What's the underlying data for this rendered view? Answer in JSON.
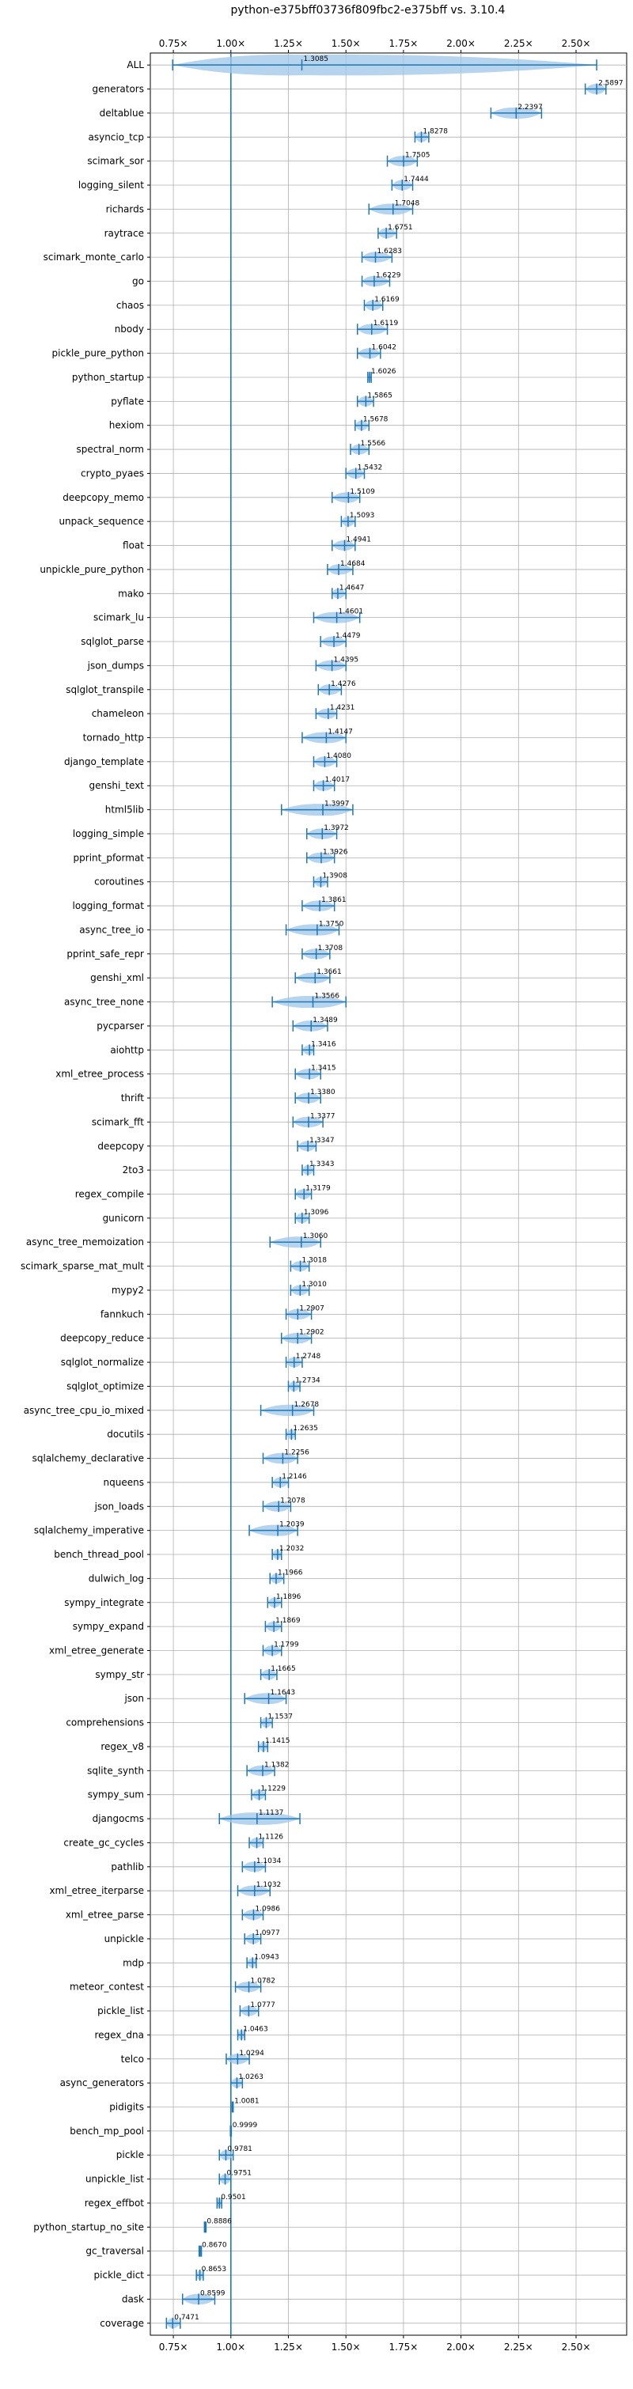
{
  "chart_data": {
    "type": "violin",
    "title": "python-e375bff03736f809fbc2-e375bff vs. 3.10.4",
    "xlabel": "",
    "ylabel": "",
    "xlim": [
      0.65,
      2.72
    ],
    "xticks": [
      0.75,
      1.0,
      1.25,
      1.5,
      1.75,
      2.0,
      2.25,
      2.5
    ],
    "xtick_labels": [
      "0.75×",
      "1.00×",
      "1.25×",
      "1.50×",
      "1.75×",
      "2.00×",
      "2.25×",
      "2.50×"
    ],
    "reference_line": 1.0,
    "grid": true,
    "colors": {
      "violin": "#9ec6e8",
      "whisker": "#1f77b4",
      "reference": "#1f77b4",
      "grid": "#b0b0b0"
    },
    "benchmarks": [
      {
        "name": "ALL",
        "median": 1.3085,
        "min": 0.7471,
        "max": 2.5897,
        "label": "1.3085"
      },
      {
        "name": "generators",
        "median": 2.5897,
        "min": 2.54,
        "max": 2.63,
        "label": "2.5897"
      },
      {
        "name": "deltablue",
        "median": 2.2397,
        "min": 2.13,
        "max": 2.35,
        "label": "2.2397"
      },
      {
        "name": "asyncio_tcp",
        "median": 1.8278,
        "min": 1.8,
        "max": 1.86,
        "label": "1.8278"
      },
      {
        "name": "scimark_sor",
        "median": 1.7505,
        "min": 1.68,
        "max": 1.81,
        "label": "1.7505"
      },
      {
        "name": "logging_silent",
        "median": 1.7444,
        "min": 1.7,
        "max": 1.79,
        "label": "1.7444"
      },
      {
        "name": "richards",
        "median": 1.7048,
        "min": 1.6,
        "max": 1.79,
        "label": "1.7048"
      },
      {
        "name": "raytrace",
        "median": 1.6751,
        "min": 1.64,
        "max": 1.72,
        "label": "1.6751"
      },
      {
        "name": "scimark_monte_carlo",
        "median": 1.6283,
        "min": 1.57,
        "max": 1.7,
        "label": "1.6283"
      },
      {
        "name": "go",
        "median": 1.6229,
        "min": 1.57,
        "max": 1.69,
        "label": "1.6229"
      },
      {
        "name": "chaos",
        "median": 1.6169,
        "min": 1.58,
        "max": 1.66,
        "label": "1.6169"
      },
      {
        "name": "nbody",
        "median": 1.6119,
        "min": 1.55,
        "max": 1.68,
        "label": "1.6119"
      },
      {
        "name": "pickle_pure_python",
        "median": 1.6042,
        "min": 1.55,
        "max": 1.65,
        "label": "1.6042"
      },
      {
        "name": "python_startup",
        "median": 1.6026,
        "min": 1.595,
        "max": 1.61,
        "label": "1.6026"
      },
      {
        "name": "pyflate",
        "median": 1.5865,
        "min": 1.55,
        "max": 1.62,
        "label": "1.5865"
      },
      {
        "name": "hexiom",
        "median": 1.5678,
        "min": 1.54,
        "max": 1.6,
        "label": "1.5678"
      },
      {
        "name": "spectral_norm",
        "median": 1.5566,
        "min": 1.52,
        "max": 1.6,
        "label": "1.5566"
      },
      {
        "name": "crypto_pyaes",
        "median": 1.5432,
        "min": 1.5,
        "max": 1.58,
        "label": "1.5432"
      },
      {
        "name": "deepcopy_memo",
        "median": 1.5109,
        "min": 1.44,
        "max": 1.56,
        "label": "1.5109"
      },
      {
        "name": "unpack_sequence",
        "median": 1.5093,
        "min": 1.48,
        "max": 1.54,
        "label": "1.5093"
      },
      {
        "name": "float",
        "median": 1.4941,
        "min": 1.44,
        "max": 1.54,
        "label": "1.4941"
      },
      {
        "name": "unpickle_pure_python",
        "median": 1.4684,
        "min": 1.42,
        "max": 1.53,
        "label": "1.4684"
      },
      {
        "name": "mako",
        "median": 1.4647,
        "min": 1.44,
        "max": 1.5,
        "label": "1.4647"
      },
      {
        "name": "scimark_lu",
        "median": 1.4601,
        "min": 1.36,
        "max": 1.56,
        "label": "1.4601"
      },
      {
        "name": "sqlglot_parse",
        "median": 1.4479,
        "min": 1.39,
        "max": 1.5,
        "label": "1.4479"
      },
      {
        "name": "json_dumps",
        "median": 1.4395,
        "min": 1.37,
        "max": 1.5,
        "label": "1.4395"
      },
      {
        "name": "sqlglot_transpile",
        "median": 1.4276,
        "min": 1.38,
        "max": 1.48,
        "label": "1.4276"
      },
      {
        "name": "chameleon",
        "median": 1.4231,
        "min": 1.37,
        "max": 1.46,
        "label": "1.4231"
      },
      {
        "name": "tornado_http",
        "median": 1.4147,
        "min": 1.31,
        "max": 1.5,
        "label": "1.4147"
      },
      {
        "name": "django_template",
        "median": 1.408,
        "min": 1.36,
        "max": 1.46,
        "label": "1.4080"
      },
      {
        "name": "genshi_text",
        "median": 1.4017,
        "min": 1.36,
        "max": 1.45,
        "label": "1.4017"
      },
      {
        "name": "html5lib",
        "median": 1.3997,
        "min": 1.22,
        "max": 1.53,
        "label": "1.3997"
      },
      {
        "name": "logging_simple",
        "median": 1.3972,
        "min": 1.33,
        "max": 1.46,
        "label": "1.3972"
      },
      {
        "name": "pprint_pformat",
        "median": 1.3926,
        "min": 1.33,
        "max": 1.45,
        "label": "1.3926"
      },
      {
        "name": "coroutines",
        "median": 1.3908,
        "min": 1.36,
        "max": 1.42,
        "label": "1.3908"
      },
      {
        "name": "logging_format",
        "median": 1.3861,
        "min": 1.31,
        "max": 1.45,
        "label": "1.3861"
      },
      {
        "name": "async_tree_io",
        "median": 1.375,
        "min": 1.24,
        "max": 1.47,
        "label": "1.3750"
      },
      {
        "name": "pprint_safe_repr",
        "median": 1.3708,
        "min": 1.31,
        "max": 1.43,
        "label": "1.3708"
      },
      {
        "name": "genshi_xml",
        "median": 1.3661,
        "min": 1.28,
        "max": 1.43,
        "label": "1.3661"
      },
      {
        "name": "async_tree_none",
        "median": 1.3566,
        "min": 1.18,
        "max": 1.5,
        "label": "1.3566"
      },
      {
        "name": "pycparser",
        "median": 1.3489,
        "min": 1.27,
        "max": 1.42,
        "label": "1.3489"
      },
      {
        "name": "aiohttp",
        "median": 1.3416,
        "min": 1.31,
        "max": 1.36,
        "label": "1.3416"
      },
      {
        "name": "xml_etree_process",
        "median": 1.3415,
        "min": 1.28,
        "max": 1.39,
        "label": "1.3415"
      },
      {
        "name": "thrift",
        "median": 1.338,
        "min": 1.28,
        "max": 1.39,
        "label": "1.3380"
      },
      {
        "name": "scimark_fft",
        "median": 1.3377,
        "min": 1.27,
        "max": 1.4,
        "label": "1.3377"
      },
      {
        "name": "deepcopy",
        "median": 1.3347,
        "min": 1.29,
        "max": 1.37,
        "label": "1.3347"
      },
      {
        "name": "2to3",
        "median": 1.3343,
        "min": 1.31,
        "max": 1.36,
        "label": "1.3343"
      },
      {
        "name": "regex_compile",
        "median": 1.3179,
        "min": 1.28,
        "max": 1.35,
        "label": "1.3179"
      },
      {
        "name": "gunicorn",
        "median": 1.3096,
        "min": 1.28,
        "max": 1.34,
        "label": "1.3096"
      },
      {
        "name": "async_tree_memoization",
        "median": 1.306,
        "min": 1.17,
        "max": 1.39,
        "label": "1.3060"
      },
      {
        "name": "scimark_sparse_mat_mult",
        "median": 1.3018,
        "min": 1.26,
        "max": 1.34,
        "label": "1.3018"
      },
      {
        "name": "mypy2",
        "median": 1.301,
        "min": 1.26,
        "max": 1.34,
        "label": "1.3010"
      },
      {
        "name": "fannkuch",
        "median": 1.2907,
        "min": 1.24,
        "max": 1.35,
        "label": "1.2907"
      },
      {
        "name": "deepcopy_reduce",
        "median": 1.2902,
        "min": 1.22,
        "max": 1.35,
        "label": "1.2902"
      },
      {
        "name": "sqlglot_normalize",
        "median": 1.2748,
        "min": 1.24,
        "max": 1.31,
        "label": "1.2748"
      },
      {
        "name": "sqlglot_optimize",
        "median": 1.2734,
        "min": 1.25,
        "max": 1.3,
        "label": "1.2734"
      },
      {
        "name": "async_tree_cpu_io_mixed",
        "median": 1.2678,
        "min": 1.13,
        "max": 1.36,
        "label": "1.2678"
      },
      {
        "name": "docutils",
        "median": 1.2635,
        "min": 1.24,
        "max": 1.28,
        "label": "1.2635"
      },
      {
        "name": "sqlalchemy_declarative",
        "median": 1.2256,
        "min": 1.14,
        "max": 1.29,
        "label": "1.2256"
      },
      {
        "name": "nqueens",
        "median": 1.2146,
        "min": 1.18,
        "max": 1.25,
        "label": "1.2146"
      },
      {
        "name": "json_loads",
        "median": 1.2078,
        "min": 1.14,
        "max": 1.26,
        "label": "1.2078"
      },
      {
        "name": "sqlalchemy_imperative",
        "median": 1.2039,
        "min": 1.08,
        "max": 1.29,
        "label": "1.2039"
      },
      {
        "name": "bench_thread_pool",
        "median": 1.2032,
        "min": 1.18,
        "max": 1.22,
        "label": "1.2032"
      },
      {
        "name": "dulwich_log",
        "median": 1.1966,
        "min": 1.17,
        "max": 1.23,
        "label": "1.1966"
      },
      {
        "name": "sympy_integrate",
        "median": 1.1896,
        "min": 1.16,
        "max": 1.22,
        "label": "1.1896"
      },
      {
        "name": "sympy_expand",
        "median": 1.1869,
        "min": 1.15,
        "max": 1.22,
        "label": "1.1869"
      },
      {
        "name": "xml_etree_generate",
        "median": 1.1799,
        "min": 1.14,
        "max": 1.22,
        "label": "1.1799"
      },
      {
        "name": "sympy_str",
        "median": 1.1665,
        "min": 1.13,
        "max": 1.2,
        "label": "1.1665"
      },
      {
        "name": "json",
        "median": 1.1643,
        "min": 1.06,
        "max": 1.24,
        "label": "1.1643"
      },
      {
        "name": "comprehensions",
        "median": 1.1537,
        "min": 1.13,
        "max": 1.18,
        "label": "1.1537"
      },
      {
        "name": "regex_v8",
        "median": 1.1415,
        "min": 1.12,
        "max": 1.16,
        "label": "1.1415"
      },
      {
        "name": "sqlite_synth",
        "median": 1.1382,
        "min": 1.07,
        "max": 1.19,
        "label": "1.1382"
      },
      {
        "name": "sympy_sum",
        "median": 1.1229,
        "min": 1.09,
        "max": 1.15,
        "label": "1.1229"
      },
      {
        "name": "djangocms",
        "median": 1.1137,
        "min": 0.95,
        "max": 1.3,
        "label": "1.1137"
      },
      {
        "name": "create_gc_cycles",
        "median": 1.1126,
        "min": 1.08,
        "max": 1.14,
        "label": "1.1126"
      },
      {
        "name": "pathlib",
        "median": 1.1034,
        "min": 1.05,
        "max": 1.15,
        "label": "1.1034"
      },
      {
        "name": "xml_etree_iterparse",
        "median": 1.1032,
        "min": 1.03,
        "max": 1.17,
        "label": "1.1032"
      },
      {
        "name": "xml_etree_parse",
        "median": 1.0986,
        "min": 1.05,
        "max": 1.14,
        "label": "1.0986"
      },
      {
        "name": "unpickle",
        "median": 1.0977,
        "min": 1.06,
        "max": 1.13,
        "label": "1.0977"
      },
      {
        "name": "mdp",
        "median": 1.0943,
        "min": 1.07,
        "max": 1.11,
        "label": "1.0943"
      },
      {
        "name": "meteor_contest",
        "median": 1.0782,
        "min": 1.02,
        "max": 1.13,
        "label": "1.0782"
      },
      {
        "name": "pickle_list",
        "median": 1.0777,
        "min": 1.04,
        "max": 1.12,
        "label": "1.0777"
      },
      {
        "name": "regex_dna",
        "median": 1.0463,
        "min": 1.03,
        "max": 1.06,
        "label": "1.0463"
      },
      {
        "name": "telco",
        "median": 1.0294,
        "min": 0.98,
        "max": 1.08,
        "label": "1.0294"
      },
      {
        "name": "async_generators",
        "median": 1.0263,
        "min": 1.0,
        "max": 1.05,
        "label": "1.0263"
      },
      {
        "name": "pidigits",
        "median": 1.0081,
        "min": 1.006,
        "max": 1.01,
        "label": "1.0081"
      },
      {
        "name": "bench_mp_pool",
        "median": 0.9999,
        "min": 0.998,
        "max": 1.002,
        "label": "0.9999"
      },
      {
        "name": "pickle",
        "median": 0.9781,
        "min": 0.95,
        "max": 1.01,
        "label": "0.9781"
      },
      {
        "name": "unpickle_list",
        "median": 0.9751,
        "min": 0.95,
        "max": 1.0,
        "label": "0.9751"
      },
      {
        "name": "regex_effbot",
        "median": 0.9501,
        "min": 0.94,
        "max": 0.96,
        "label": "0.9501"
      },
      {
        "name": "python_startup_no_site",
        "median": 0.8886,
        "min": 0.885,
        "max": 0.892,
        "label": "0.8886"
      },
      {
        "name": "gc_traversal",
        "median": 0.867,
        "min": 0.862,
        "max": 0.872,
        "label": "0.8670"
      },
      {
        "name": "pickle_dict",
        "median": 0.8653,
        "min": 0.85,
        "max": 0.88,
        "label": "0.8653"
      },
      {
        "name": "dask",
        "median": 0.8599,
        "min": 0.79,
        "max": 0.93,
        "label": "0.8599"
      },
      {
        "name": "coverage",
        "median": 0.7471,
        "min": 0.72,
        "max": 0.78,
        "label": "0.7471"
      }
    ]
  }
}
